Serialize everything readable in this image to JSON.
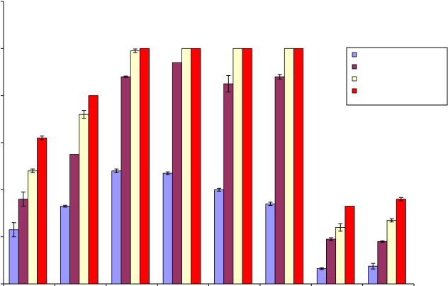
{
  "chart_data": {
    "type": "bar",
    "title": "",
    "xlabel": "",
    "ylabel": "",
    "categories": [
      "",
      "",
      "",
      "",
      "",
      "",
      "",
      ""
    ],
    "ylim": [
      0,
      120
    ],
    "y_ticks": [
      0,
      20,
      40,
      60,
      80,
      100,
      120
    ],
    "grid": false,
    "legend_position": "top-right",
    "series": [
      {
        "color": "#9999ff",
        "values": [
          23,
          33,
          48,
          47,
          40,
          34,
          6.5,
          7.5
        ],
        "errors": [
          3,
          0.4,
          0.8,
          0.6,
          0.6,
          0.7,
          0.4,
          1.2
        ]
      },
      {
        "color": "#993366",
        "values": [
          36,
          55,
          88,
          94,
          85,
          88,
          19,
          18
        ],
        "errors": [
          3,
          0,
          0.3,
          0,
          3.5,
          1,
          0.6,
          0.3
        ]
      },
      {
        "color": "#ffffcc",
        "values": [
          48,
          72,
          99,
          100,
          100,
          100,
          24,
          27
        ],
        "errors": [
          0.8,
          1.7,
          0.8,
          0,
          0,
          0,
          1.6,
          0.7
        ]
      },
      {
        "color": "#ff0000",
        "values": [
          62,
          80,
          100,
          100,
          100,
          100,
          33,
          36
        ],
        "errors": [
          0.8,
          0,
          0,
          0,
          0,
          0,
          0,
          0.7
        ]
      }
    ]
  }
}
